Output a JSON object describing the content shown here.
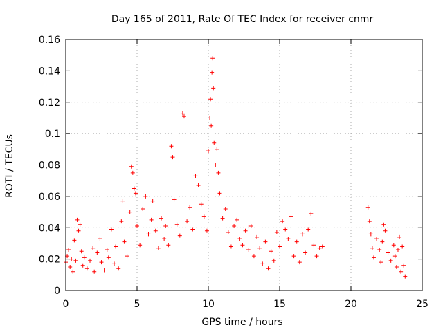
{
  "chart_data": {
    "type": "scatter",
    "title": "Day 165 of 2011, Rate Of TEC Index for receiver cnmr",
    "xlabel": "GPS time / hours",
    "ylabel": "ROTI / TECUs",
    "xlim": [
      0,
      25
    ],
    "ylim": [
      0,
      0.16
    ],
    "x_ticks": [
      0,
      5,
      10,
      15,
      20,
      25
    ],
    "y_ticks": [
      0,
      0.02,
      0.04,
      0.06,
      0.08,
      0.1,
      0.12,
      0.14,
      0.16
    ],
    "x_tick_labels": [
      "0",
      "5",
      "10",
      "15",
      "20",
      "25"
    ],
    "y_tick_labels": [
      "0",
      "0.02",
      "0.04",
      "0.06",
      "0.08",
      "0.1",
      "0.12",
      "0.14",
      "0.16"
    ],
    "grid": true,
    "marker": "+",
    "color": "#ff0000",
    "series": [
      {
        "values": [
          [
            0.0,
            0.018
          ],
          [
            0.1,
            0.022
          ],
          [
            0.2,
            0.026
          ],
          [
            0.3,
            0.015
          ],
          [
            0.4,
            0.02
          ],
          [
            0.5,
            0.012
          ],
          [
            0.6,
            0.032
          ],
          [
            0.7,
            0.019
          ],
          [
            0.8,
            0.045
          ],
          [
            0.9,
            0.038
          ],
          [
            1.0,
            0.042
          ],
          [
            1.1,
            0.025
          ],
          [
            1.2,
            0.016
          ],
          [
            1.3,
            0.021
          ],
          [
            1.5,
            0.014
          ],
          [
            1.7,
            0.019
          ],
          [
            1.9,
            0.027
          ],
          [
            2.0,
            0.012
          ],
          [
            2.2,
            0.024
          ],
          [
            2.4,
            0.033
          ],
          [
            2.5,
            0.018
          ],
          [
            2.7,
            0.013
          ],
          [
            2.9,
            0.026
          ],
          [
            3.0,
            0.021
          ],
          [
            3.2,
            0.039
          ],
          [
            3.4,
            0.017
          ],
          [
            3.5,
            0.028
          ],
          [
            3.7,
            0.014
          ],
          [
            3.9,
            0.044
          ],
          [
            4.0,
            0.057
          ],
          [
            4.1,
            0.031
          ],
          [
            4.3,
            0.022
          ],
          [
            4.5,
            0.05
          ],
          [
            4.6,
            0.079
          ],
          [
            4.7,
            0.075
          ],
          [
            4.8,
            0.065
          ],
          [
            4.9,
            0.062
          ],
          [
            5.0,
            0.041
          ],
          [
            5.2,
            0.029
          ],
          [
            5.4,
            0.052
          ],
          [
            5.6,
            0.06
          ],
          [
            5.8,
            0.036
          ],
          [
            6.0,
            0.045
          ],
          [
            6.1,
            0.057
          ],
          [
            6.3,
            0.038
          ],
          [
            6.5,
            0.027
          ],
          [
            6.7,
            0.046
          ],
          [
            6.9,
            0.033
          ],
          [
            7.0,
            0.041
          ],
          [
            7.2,
            0.029
          ],
          [
            7.4,
            0.092
          ],
          [
            7.5,
            0.085
          ],
          [
            7.6,
            0.058
          ],
          [
            7.8,
            0.042
          ],
          [
            8.0,
            0.035
          ],
          [
            8.2,
            0.113
          ],
          [
            8.3,
            0.111
          ],
          [
            8.5,
            0.044
          ],
          [
            8.7,
            0.053
          ],
          [
            8.9,
            0.039
          ],
          [
            9.1,
            0.073
          ],
          [
            9.3,
            0.067
          ],
          [
            9.5,
            0.055
          ],
          [
            9.7,
            0.047
          ],
          [
            9.9,
            0.038
          ],
          [
            10.0,
            0.089
          ],
          [
            10.1,
            0.11
          ],
          [
            10.15,
            0.122
          ],
          [
            10.2,
            0.105
          ],
          [
            10.25,
            0.139
          ],
          [
            10.3,
            0.148
          ],
          [
            10.35,
            0.129
          ],
          [
            10.4,
            0.094
          ],
          [
            10.5,
            0.08
          ],
          [
            10.6,
            0.09
          ],
          [
            10.7,
            0.075
          ],
          [
            10.8,
            0.062
          ],
          [
            11.0,
            0.046
          ],
          [
            11.2,
            0.052
          ],
          [
            11.4,
            0.037
          ],
          [
            11.6,
            0.028
          ],
          [
            11.8,
            0.041
          ],
          [
            12.0,
            0.045
          ],
          [
            12.2,
            0.033
          ],
          [
            12.4,
            0.029
          ],
          [
            12.6,
            0.038
          ],
          [
            12.8,
            0.026
          ],
          [
            13.0,
            0.041
          ],
          [
            13.2,
            0.022
          ],
          [
            13.4,
            0.034
          ],
          [
            13.6,
            0.027
          ],
          [
            13.8,
            0.017
          ],
          [
            14.0,
            0.031
          ],
          [
            14.2,
            0.014
          ],
          [
            14.4,
            0.025
          ],
          [
            14.6,
            0.019
          ],
          [
            14.8,
            0.037
          ],
          [
            15.0,
            0.028
          ],
          [
            15.2,
            0.044
          ],
          [
            15.4,
            0.039
          ],
          [
            15.6,
            0.033
          ],
          [
            15.8,
            0.047
          ],
          [
            16.0,
            0.022
          ],
          [
            16.2,
            0.031
          ],
          [
            16.4,
            0.018
          ],
          [
            16.6,
            0.036
          ],
          [
            16.8,
            0.024
          ],
          [
            17.0,
            0.039
          ],
          [
            17.2,
            0.049
          ],
          [
            17.4,
            0.029
          ],
          [
            17.6,
            0.022
          ],
          [
            17.8,
            0.027
          ],
          [
            18.0,
            0.028
          ],
          [
            21.2,
            0.053
          ],
          [
            21.3,
            0.044
          ],
          [
            21.4,
            0.036
          ],
          [
            21.5,
            0.027
          ],
          [
            21.6,
            0.021
          ],
          [
            21.8,
            0.033
          ],
          [
            22.0,
            0.026
          ],
          [
            22.1,
            0.018
          ],
          [
            22.2,
            0.031
          ],
          [
            22.3,
            0.042
          ],
          [
            22.4,
            0.038
          ],
          [
            22.6,
            0.024
          ],
          [
            22.8,
            0.019
          ],
          [
            23.0,
            0.029
          ],
          [
            23.1,
            0.022
          ],
          [
            23.2,
            0.015
          ],
          [
            23.3,
            0.026
          ],
          [
            23.4,
            0.034
          ],
          [
            23.5,
            0.012
          ],
          [
            23.6,
            0.028
          ],
          [
            23.7,
            0.016
          ],
          [
            23.8,
            0.009
          ]
        ]
      }
    ]
  }
}
